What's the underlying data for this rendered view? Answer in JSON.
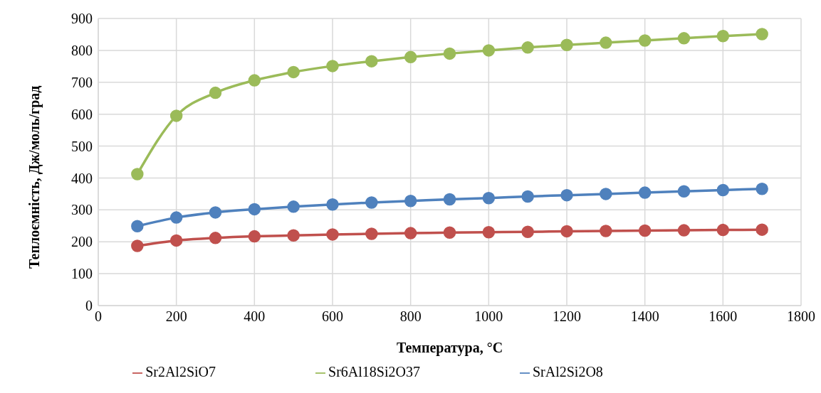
{
  "chart_data": {
    "type": "line",
    "xlabel": "Температура, °C",
    "ylabel": "Теплоємність, Дж/моль/град",
    "x": [
      100,
      200,
      300,
      400,
      500,
      600,
      700,
      800,
      900,
      1000,
      1100,
      1200,
      1300,
      1400,
      1500,
      1600,
      1700
    ],
    "series": [
      {
        "name": "SrAl2Si2O8",
        "color": "#4f81bd",
        "values": [
          249,
          276,
          292,
          302,
          310,
          317,
          323,
          328,
          333,
          337,
          342,
          346,
          350,
          354,
          358,
          362,
          366
        ]
      },
      {
        "name": "Sr2Al2SiO7",
        "color": "#c0504d",
        "values": [
          187,
          204,
          212,
          217,
          220,
          223,
          225,
          227,
          229,
          230,
          231,
          233,
          234,
          235,
          236,
          237,
          238
        ]
      },
      {
        "name": "Sr6Al18Si2O37",
        "color": "#9bbb59",
        "values": [
          412,
          595,
          667,
          706,
          732,
          751,
          766,
          779,
          790,
          800,
          809,
          817,
          824,
          831,
          838,
          845,
          851
        ]
      }
    ],
    "xlim": [
      0,
      1800
    ],
    "xticks": [
      0,
      200,
      400,
      600,
      800,
      1000,
      1200,
      1400,
      1600,
      1800
    ],
    "ylim": [
      0,
      900
    ],
    "yticks": [
      0,
      100,
      200,
      300,
      400,
      500,
      600,
      700,
      800,
      900
    ],
    "grid": true,
    "legend": "bottom",
    "marker": "circle",
    "line_style": "solid"
  }
}
